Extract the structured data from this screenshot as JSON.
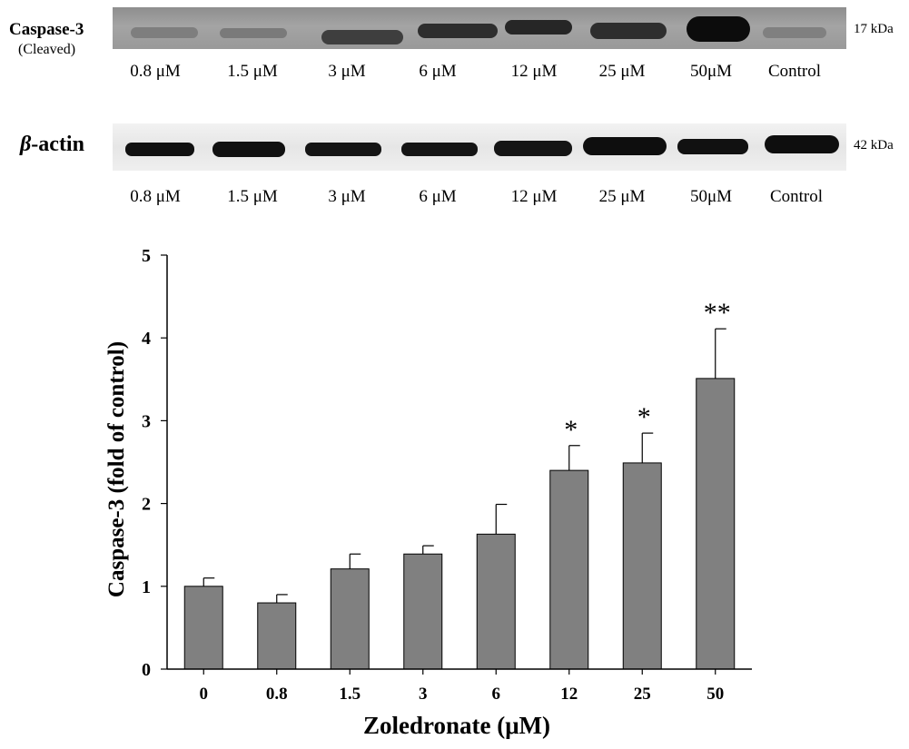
{
  "blots": [
    {
      "label": "Caspase-3",
      "sublabel": "(Cleaved)",
      "size": "17 kDa",
      "lanes": [
        "0.8 μM",
        "1.5 μM",
        "3 μM",
        "6 μM",
        "12 μM",
        "25 μM",
        "50μM",
        "Control"
      ]
    },
    {
      "label_italic": "β",
      "label_rest": "-actin",
      "size": "42 kDa",
      "lanes": [
        "0.8 μM",
        "1.5 μM",
        "3 μM",
        "6 μM",
        "12 μM",
        "25 μM",
        "50μM",
        "Control"
      ]
    }
  ],
  "chart_data": {
    "type": "bar",
    "categories": [
      "0",
      "0.8",
      "1.5",
      "3",
      "6",
      "12",
      "25",
      "50"
    ],
    "values": [
      1.0,
      0.8,
      1.21,
      1.39,
      1.63,
      2.4,
      2.49,
      3.51
    ],
    "error_upper": [
      0.1,
      0.1,
      0.18,
      0.1,
      0.36,
      0.3,
      0.36,
      0.6
    ],
    "annotations": [
      "",
      "",
      "",
      "",
      "",
      "*",
      "*",
      "**"
    ],
    "xlabel": "Zoledronate (μM)",
    "ylabel": "Caspase-3 (fold of control)",
    "ylim": [
      0,
      5
    ],
    "yticks": [
      "0",
      "1",
      "2",
      "3",
      "4",
      "5"
    ],
    "bar_color": "#808080",
    "grid": false
  }
}
